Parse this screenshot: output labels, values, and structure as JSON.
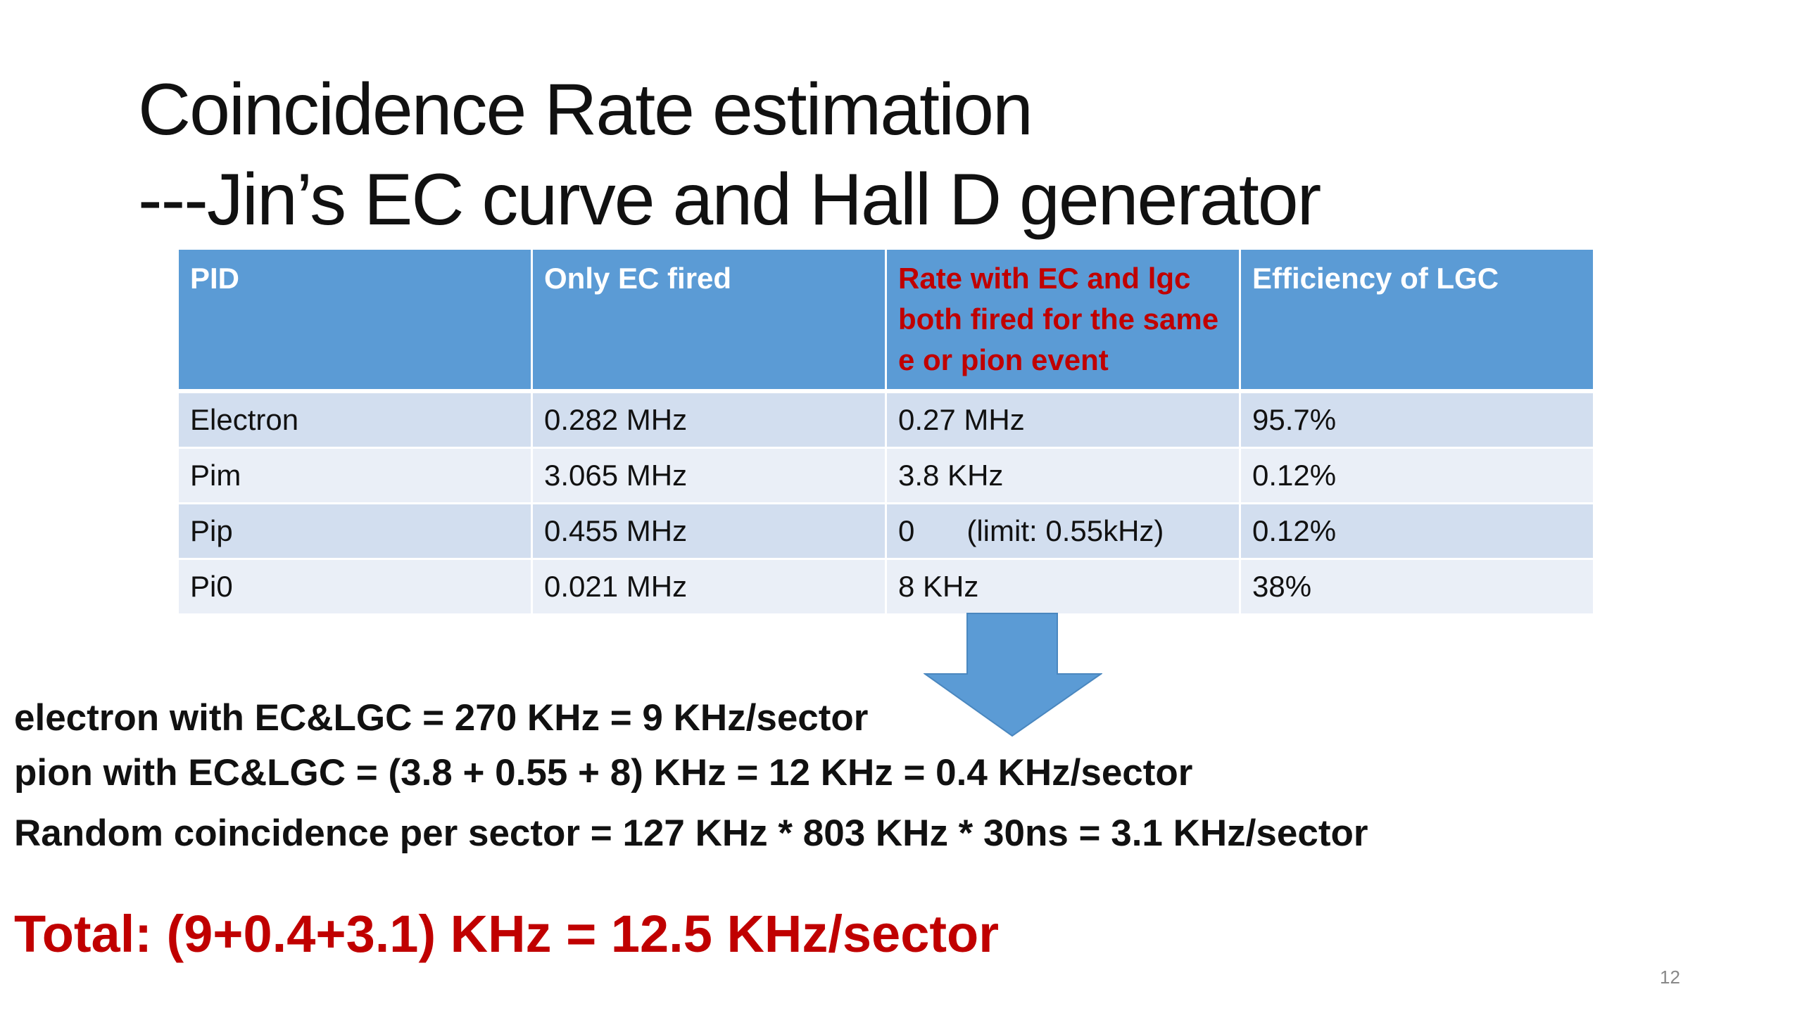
{
  "title": {
    "line1": "Coincidence Rate estimation",
    "line2": "---Jin’s EC curve and Hall D generator"
  },
  "table": {
    "headers": [
      "PID",
      "Only EC fired",
      "Rate with EC and lgc both fired for the same e or pion event",
      "Efficiency of LGC"
    ],
    "rows": [
      [
        "Electron",
        "0.282 MHz",
        "0.27 MHz",
        "95.7%"
      ],
      [
        "Pim",
        "3.065 MHz",
        "3.8 KHz",
        "0.12%"
      ],
      [
        "Pip",
        "0.455 MHz",
        "0",
        "0.12%"
      ],
      [
        "Pi0",
        "0.021 MHz",
        "8 KHz",
        "38%"
      ]
    ],
    "pip_limit": "(limit: 0.55kHz)"
  },
  "lines": [
    "electron with EC&LGC = 270 KHz =  9 KHz/sector",
    "pion with EC&LGC = (3.8 + 0.55 + 8) KHz = 12 KHz = 0.4 KHz/sector",
    "Random coincidence per sector = 127 KHz * 803 KHz * 30ns = 3.1 KHz/sector"
  ],
  "total": "Total: (9+0.4+3.1) KHz = 12.5 KHz/sector",
  "page_number": "12",
  "colors": {
    "header": "#5b9bd5",
    "accent_red": "#c00000",
    "row_odd": "#d2deef",
    "row_even": "#eaeff7"
  }
}
